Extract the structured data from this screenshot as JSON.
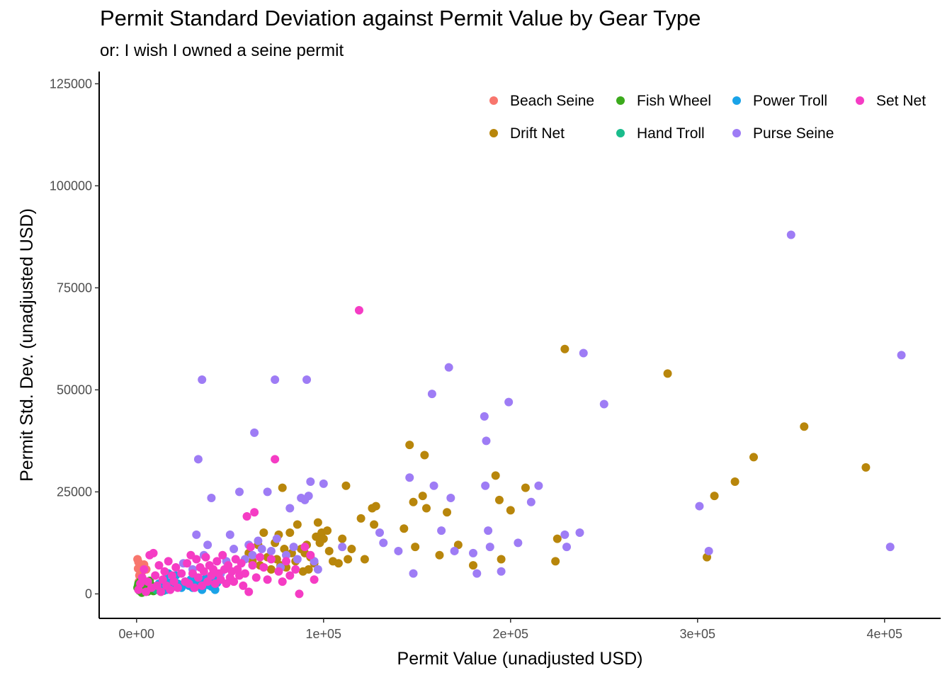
{
  "chart_data": {
    "type": "scatter",
    "title": "Permit Standard Deviation against Permit Value by Gear Type",
    "subtitle": "or: I wish I owned a seine permit",
    "xlabel": "Permit Value (unadjusted USD)",
    "ylabel": "Permit Std. Dev. (unadjusted USD)",
    "xlim": [
      -20000,
      430000
    ],
    "ylim": [
      -6000,
      128000
    ],
    "x_ticks": [
      0,
      100000,
      200000,
      300000,
      400000
    ],
    "x_tick_labels": [
      "0e+00",
      "1e+05",
      "2e+05",
      "3e+05",
      "4e+05"
    ],
    "y_ticks": [
      0,
      25000,
      50000,
      75000,
      100000,
      125000
    ],
    "y_tick_labels": [
      "0",
      "25000",
      "50000",
      "75000",
      "100000",
      "125000"
    ],
    "grid": false,
    "legend_position": "top-right",
    "series": [
      {
        "name": "Beach Seine",
        "color": "#F8766D",
        "points": [
          [
            500,
            8500
          ],
          [
            1000,
            7800
          ],
          [
            2000,
            6800
          ],
          [
            1500,
            4500
          ],
          [
            3000,
            5500
          ],
          [
            800,
            6200
          ],
          [
            2500,
            3800
          ],
          [
            4000,
            7200
          ],
          [
            5200,
            6000
          ],
          [
            1200,
            3000
          ]
        ]
      },
      {
        "name": "Drift Net",
        "color": "#B8860B",
        "points": [
          [
            60000,
            10000
          ],
          [
            62000,
            8000
          ],
          [
            65000,
            12000
          ],
          [
            66000,
            7000
          ],
          [
            68000,
            15000
          ],
          [
            70000,
            9000
          ],
          [
            72000,
            6000
          ],
          [
            74000,
            12500
          ],
          [
            75000,
            8500
          ],
          [
            76000,
            14500
          ],
          [
            77000,
            7000
          ],
          [
            78000,
            26000
          ],
          [
            79000,
            11000
          ],
          [
            80000,
            6500
          ],
          [
            82000,
            15000
          ],
          [
            83000,
            10000
          ],
          [
            85000,
            8000
          ],
          [
            86000,
            17000
          ],
          [
            88000,
            11000
          ],
          [
            89000,
            5500
          ],
          [
            90000,
            10000
          ],
          [
            91000,
            12000
          ],
          [
            92000,
            6000
          ],
          [
            93000,
            9000
          ],
          [
            95000,
            7500
          ],
          [
            96000,
            14000
          ],
          [
            97000,
            17500
          ],
          [
            98000,
            12500
          ],
          [
            99000,
            15000
          ],
          [
            100000,
            13500
          ],
          [
            102000,
            15500
          ],
          [
            103000,
            10500
          ],
          [
            105000,
            8000
          ],
          [
            108000,
            7500
          ],
          [
            110000,
            13500
          ],
          [
            112000,
            26500
          ],
          [
            113000,
            8500
          ],
          [
            115000,
            11000
          ],
          [
            120000,
            18500
          ],
          [
            122000,
            8500
          ],
          [
            126000,
            21000
          ],
          [
            127000,
            17000
          ],
          [
            128000,
            21500
          ],
          [
            143000,
            16000
          ],
          [
            146000,
            36500
          ],
          [
            148000,
            22500
          ],
          [
            149000,
            11500
          ],
          [
            153000,
            24000
          ],
          [
            154000,
            34000
          ],
          [
            155000,
            21000
          ],
          [
            162000,
            9500
          ],
          [
            166000,
            20000
          ],
          [
            172000,
            12000
          ],
          [
            180000,
            7000
          ],
          [
            192000,
            29000
          ],
          [
            194000,
            23000
          ],
          [
            195000,
            8500
          ],
          [
            200000,
            20500
          ],
          [
            208000,
            26000
          ],
          [
            224000,
            8000
          ],
          [
            225000,
            13500
          ],
          [
            229000,
            60000
          ],
          [
            284000,
            54000
          ],
          [
            305000,
            9000
          ],
          [
            309000,
            24000
          ],
          [
            320000,
            27500
          ],
          [
            330000,
            33500
          ],
          [
            357000,
            41000
          ],
          [
            390000,
            31000
          ]
        ]
      },
      {
        "name": "Fish Wheel",
        "color": "#3BAA1C",
        "points": [
          [
            500,
            1500
          ],
          [
            1000,
            2500
          ],
          [
            1500,
            800
          ],
          [
            2000,
            3000
          ],
          [
            2500,
            1200
          ],
          [
            3000,
            2000
          ],
          [
            3500,
            500
          ],
          [
            4000,
            1800
          ],
          [
            4500,
            2800
          ],
          [
            5000,
            1000
          ],
          [
            5500,
            2200
          ],
          [
            6000,
            600
          ],
          [
            6500,
            1600
          ],
          [
            7000,
            3200
          ],
          [
            7500,
            900
          ],
          [
            8000,
            2000
          ],
          [
            8500,
            1400
          ],
          [
            9000,
            700
          ],
          [
            9500,
            1800
          ],
          [
            1200,
            1100
          ],
          [
            2800,
            300
          ],
          [
            4200,
            900
          ],
          [
            6800,
            2500
          ],
          [
            3300,
            3500
          ],
          [
            800,
            2000
          ],
          [
            1800,
            2200
          ],
          [
            5800,
            1300
          ],
          [
            9800,
            1200
          ]
        ]
      },
      {
        "name": "Hand Troll",
        "color": "#1ABC8C",
        "points": [
          [
            10500,
            1000
          ],
          [
            12500,
            1500
          ],
          [
            14500,
            800
          ],
          [
            16500,
            2000
          ],
          [
            13500,
            1200
          ]
        ]
      },
      {
        "name": "Power Troll",
        "color": "#1AA3E8",
        "points": [
          [
            12000,
            2500
          ],
          [
            14000,
            1500
          ],
          [
            15000,
            3500
          ],
          [
            16000,
            1000
          ],
          [
            17000,
            5000
          ],
          [
            18000,
            2000
          ],
          [
            19000,
            3000
          ],
          [
            20000,
            1800
          ],
          [
            21000,
            4500
          ],
          [
            22000,
            2500
          ],
          [
            24000,
            1500
          ],
          [
            26000,
            3000
          ],
          [
            28000,
            2000
          ],
          [
            29000,
            3500
          ],
          [
            30000,
            1500
          ],
          [
            31000,
            2800
          ],
          [
            32000,
            4000
          ],
          [
            33000,
            2000
          ],
          [
            34000,
            3200
          ],
          [
            35000,
            1000
          ],
          [
            36000,
            2500
          ],
          [
            37000,
            3800
          ],
          [
            38000,
            2200
          ],
          [
            39000,
            3000
          ],
          [
            40000,
            1800
          ],
          [
            41000,
            4200
          ],
          [
            42000,
            1000
          ],
          [
            43000,
            2700
          ],
          [
            44000,
            3500
          ]
        ]
      },
      {
        "name": "Purse Seine",
        "color": "#9E7CF5",
        "points": [
          [
            25000,
            7500
          ],
          [
            30000,
            6000
          ],
          [
            32000,
            14500
          ],
          [
            33000,
            33000
          ],
          [
            35000,
            52500
          ],
          [
            36000,
            9500
          ],
          [
            38000,
            12000
          ],
          [
            40000,
            23500
          ],
          [
            45000,
            5000
          ],
          [
            48000,
            8000
          ],
          [
            50000,
            14500
          ],
          [
            52000,
            11000
          ],
          [
            55000,
            25000
          ],
          [
            58000,
            8500
          ],
          [
            60000,
            12000
          ],
          [
            62000,
            9500
          ],
          [
            63000,
            39500
          ],
          [
            65000,
            13000
          ],
          [
            67000,
            11000
          ],
          [
            70000,
            25000
          ],
          [
            72000,
            10500
          ],
          [
            74000,
            52500
          ],
          [
            75000,
            13500
          ],
          [
            77000,
            6500
          ],
          [
            80000,
            9500
          ],
          [
            82000,
            21000
          ],
          [
            84000,
            11500
          ],
          [
            86000,
            8500
          ],
          [
            88000,
            23500
          ],
          [
            90000,
            23000
          ],
          [
            91000,
            52500
          ],
          [
            92000,
            24000
          ],
          [
            93000,
            27500
          ],
          [
            95000,
            8000
          ],
          [
            97000,
            6000
          ],
          [
            100000,
            27000
          ],
          [
            110000,
            11500
          ],
          [
            130000,
            15000
          ],
          [
            132000,
            12500
          ],
          [
            140000,
            10500
          ],
          [
            146000,
            28500
          ],
          [
            148000,
            5000
          ],
          [
            158000,
            49000
          ],
          [
            159000,
            26500
          ],
          [
            163000,
            15500
          ],
          [
            167000,
            55500
          ],
          [
            168000,
            23500
          ],
          [
            170000,
            10500
          ],
          [
            180000,
            10000
          ],
          [
            182000,
            5000
          ],
          [
            186000,
            43500
          ],
          [
            187000,
            37500
          ],
          [
            188000,
            15500
          ],
          [
            189000,
            11500
          ],
          [
            186500,
            26500
          ],
          [
            195000,
            5500
          ],
          [
            199000,
            47000
          ],
          [
            204000,
            12500
          ],
          [
            211000,
            22500
          ],
          [
            215000,
            26500
          ],
          [
            229000,
            14500
          ],
          [
            230000,
            11500
          ],
          [
            237000,
            15000
          ],
          [
            239000,
            59000
          ],
          [
            250000,
            46500
          ],
          [
            301000,
            21500
          ],
          [
            306000,
            10500
          ],
          [
            350000,
            88000
          ],
          [
            403000,
            11500
          ],
          [
            409000,
            58500
          ]
        ]
      },
      {
        "name": "Set Net",
        "color": "#F53CC4",
        "points": [
          [
            1000,
            1000
          ],
          [
            2000,
            2500
          ],
          [
            3000,
            4000
          ],
          [
            4000,
            6000
          ],
          [
            5000,
            500
          ],
          [
            6000,
            3000
          ],
          [
            7000,
            9500
          ],
          [
            8000,
            1500
          ],
          [
            9000,
            10000
          ],
          [
            10000,
            4500
          ],
          [
            11000,
            2000
          ],
          [
            12000,
            7000
          ],
          [
            13000,
            500
          ],
          [
            14000,
            3500
          ],
          [
            15000,
            5500
          ],
          [
            16000,
            2000
          ],
          [
            17000,
            8000
          ],
          [
            18000,
            1000
          ],
          [
            19000,
            4500
          ],
          [
            20000,
            3000
          ],
          [
            21000,
            6500
          ],
          [
            22000,
            1500
          ],
          [
            24000,
            5000
          ],
          [
            26000,
            3000
          ],
          [
            27000,
            7500
          ],
          [
            28000,
            2500
          ],
          [
            29000,
            9500
          ],
          [
            30000,
            5000
          ],
          [
            31000,
            1500
          ],
          [
            32000,
            8500
          ],
          [
            33000,
            4000
          ],
          [
            34000,
            6500
          ],
          [
            35000,
            2000
          ],
          [
            36000,
            5500
          ],
          [
            37000,
            9000
          ],
          [
            38000,
            3000
          ],
          [
            39000,
            7000
          ],
          [
            40000,
            4500
          ],
          [
            41000,
            6000
          ],
          [
            42000,
            2500
          ],
          [
            43000,
            8000
          ],
          [
            44000,
            5000
          ],
          [
            45000,
            3500
          ],
          [
            46000,
            9500
          ],
          [
            47000,
            6000
          ],
          [
            48000,
            2500
          ],
          [
            49000,
            7000
          ],
          [
            50000,
            4000
          ],
          [
            51000,
            5500
          ],
          [
            52000,
            3000
          ],
          [
            53000,
            8500
          ],
          [
            54000,
            6000
          ],
          [
            55000,
            4500
          ],
          [
            56000,
            7500
          ],
          [
            57000,
            2000
          ],
          [
            58000,
            5000
          ],
          [
            59000,
            19000
          ],
          [
            60000,
            500
          ],
          [
            61000,
            11500
          ],
          [
            62000,
            7000
          ],
          [
            63000,
            20000
          ],
          [
            64000,
            4000
          ],
          [
            66000,
            9000
          ],
          [
            68000,
            6500
          ],
          [
            70000,
            3500
          ],
          [
            72000,
            8500
          ],
          [
            74000,
            33000
          ],
          [
            76000,
            5500
          ],
          [
            78000,
            3000
          ],
          [
            80000,
            8000
          ],
          [
            82000,
            4500
          ],
          [
            85000,
            6000
          ],
          [
            87000,
            0
          ],
          [
            90000,
            11500
          ],
          [
            93000,
            9500
          ],
          [
            95000,
            3500
          ],
          [
            119000,
            69500
          ]
        ]
      }
    ]
  }
}
